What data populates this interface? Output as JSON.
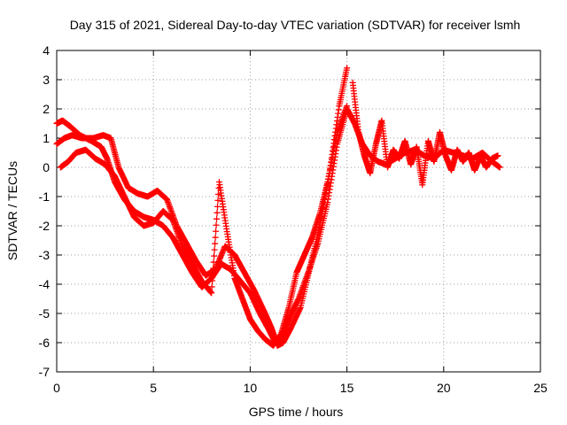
{
  "chart_data": {
    "type": "scatter",
    "title": "Day 315 of 2021, Sidereal Day-to-day VTEC variation (SDTVAR) for receiver lsmh",
    "xlabel": "GPS time / hours",
    "ylabel": "SDTVAR / TECUs",
    "xlim": [
      0,
      25
    ],
    "ylim": [
      -7,
      4
    ],
    "xticks": [
      0,
      5,
      10,
      15,
      20,
      25
    ],
    "yticks": [
      -7,
      -6,
      -5,
      -4,
      -3,
      -2,
      -1,
      0,
      1,
      2,
      3,
      4
    ],
    "grid": true,
    "marker": "+",
    "color": "#ff0000",
    "series": [
      {
        "x": [
          0.0,
          0.3,
          0.7,
          1.2,
          1.8,
          2.3,
          2.6,
          3.0,
          3.5,
          4.0,
          4.5,
          5.0,
          5.5,
          6.0,
          6.5,
          7.0,
          7.5,
          8.0,
          8.5,
          9.0,
          9.5,
          10.0,
          10.5,
          11.0,
          11.3,
          11.6,
          12.0,
          12.5,
          13.0,
          13.5,
          14.0,
          14.5,
          15.0,
          15.4,
          15.8,
          16.2,
          16.6,
          17.0,
          17.5,
          18.0,
          18.5,
          19.0,
          19.5,
          20.0,
          20.5,
          21.0,
          21.5,
          22.0,
          22.5,
          22.9
        ],
        "y": [
          1.5,
          1.6,
          1.4,
          1.1,
          0.9,
          0.7,
          0.3,
          -0.5,
          -1.1,
          -1.5,
          -1.7,
          -1.8,
          -2.0,
          -2.4,
          -3.0,
          -3.6,
          -4.1,
          -3.8,
          -3.3,
          -3.5,
          -3.9,
          -4.3,
          -5.0,
          -5.6,
          -6.0,
          -5.8,
          -5.2,
          -4.5,
          -3.6,
          -2.6,
          -1.2,
          0.8,
          2.0,
          1.5,
          0.8,
          0.4,
          0.2,
          0.1,
          0.3,
          0.5,
          0.6,
          0.4,
          0.3,
          0.6,
          0.5,
          0.4,
          0.3,
          0.5,
          0.2,
          0.0
        ]
      },
      {
        "x": [
          0.0,
          0.4,
          0.8,
          1.3,
          1.9,
          2.4,
          2.8,
          3.2,
          3.7,
          4.2,
          4.7,
          5.2,
          5.7,
          6.2,
          6.7,
          7.2,
          7.7,
          8.2,
          8.7,
          9.2,
          9.7,
          10.2,
          10.7,
          11.1,
          11.4,
          11.7,
          12.1,
          12.6,
          13.1,
          13.6,
          14.1,
          14.6,
          15.0
        ],
        "y": [
          0.8,
          1.0,
          1.1,
          1.0,
          1.0,
          1.1,
          1.0,
          0.0,
          -0.7,
          -0.9,
          -1.0,
          -0.8,
          -1.1,
          -2.0,
          -2.6,
          -3.2,
          -3.7,
          -3.5,
          -2.7,
          -3.0,
          -3.6,
          -4.2,
          -4.9,
          -5.5,
          -6.1,
          -6.0,
          -5.5,
          -4.8,
          -3.4,
          -2.0,
          -0.2,
          2.1,
          3.4
        ]
      },
      {
        "x": [
          0.2,
          0.6,
          1.0,
          1.5,
          2.0,
          2.5,
          3.0,
          3.5,
          4.0,
          4.5,
          5.0,
          5.5,
          6.0,
          6.5,
          7.0,
          7.5,
          8.0,
          8.4,
          8.8,
          9.2,
          9.6,
          10.0,
          10.4,
          10.8,
          11.2,
          11.6,
          12.0,
          12.4,
          12.8,
          13.2,
          13.6,
          14.0,
          14.5,
          15.0
        ],
        "y": [
          0.0,
          0.2,
          0.5,
          0.6,
          0.3,
          0.1,
          -0.3,
          -1.0,
          -1.7,
          -2.0,
          -1.9,
          -1.5,
          -1.8,
          -2.7,
          -3.3,
          -3.9,
          -4.3,
          -0.5,
          -2.2,
          -3.8,
          -4.5,
          -5.2,
          -5.6,
          -5.9,
          -6.1,
          -5.7,
          -4.8,
          -3.6,
          -3.0,
          -2.4,
          -1.6,
          -0.5,
          1.2,
          2.1
        ]
      },
      {
        "x": [
          15.3,
          15.6,
          15.9,
          16.2,
          16.5,
          16.8,
          17.1,
          17.4,
          17.7,
          18.0,
          18.3,
          18.6,
          18.9,
          19.2,
          19.5,
          19.8,
          20.1,
          20.4,
          20.7,
          21.0,
          21.3,
          21.6,
          21.9,
          22.2,
          22.5,
          22.8
        ],
        "y": [
          2.9,
          1.2,
          0.4,
          -0.2,
          0.8,
          1.6,
          0.0,
          0.6,
          0.3,
          0.9,
          0.1,
          0.7,
          -0.6,
          0.9,
          0.2,
          1.2,
          0.4,
          -0.1,
          0.6,
          0.2,
          0.5,
          -0.1,
          0.4,
          0.0,
          0.3,
          0.4
        ]
      }
    ]
  }
}
